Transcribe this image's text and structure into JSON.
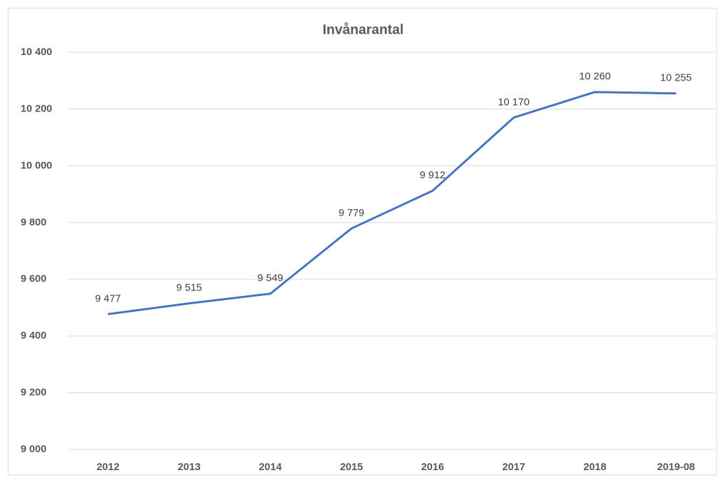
{
  "chart_data": {
    "type": "line",
    "title": "Invånarantal",
    "categories": [
      "2012",
      "2013",
      "2014",
      "2015",
      "2016",
      "2017",
      "2018",
      "2019-08"
    ],
    "values": [
      9477,
      9515,
      9549,
      9779,
      9912,
      10170,
      10260,
      10255
    ],
    "value_labels": [
      "9 477",
      "9 515",
      "9 549",
      "9 779",
      "9 912",
      "10 170",
      "10 260",
      "10 255"
    ],
    "color": "#4472c4",
    "ylim": [
      9000,
      10400
    ],
    "yticks": [
      {
        "value": 9000,
        "label": "9 000"
      },
      {
        "value": 9200,
        "label": "9 200"
      },
      {
        "value": 9400,
        "label": "9 400"
      },
      {
        "value": 9600,
        "label": "9 600"
      },
      {
        "value": 9800,
        "label": "9 800"
      },
      {
        "value": 10000,
        "label": "10 000"
      },
      {
        "value": 10200,
        "label": "10 200"
      },
      {
        "value": 10400,
        "label": "10 400"
      }
    ],
    "grid": true
  }
}
